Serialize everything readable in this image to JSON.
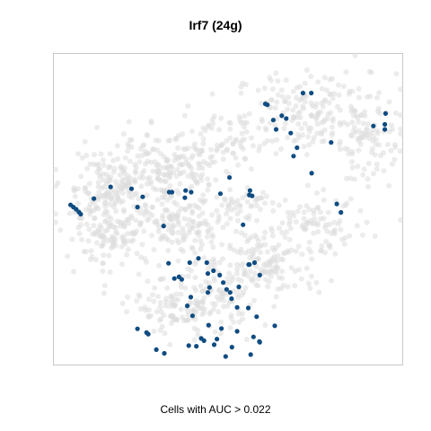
{
  "chart_data": {
    "type": "scatter",
    "title": "Irf7 (24g)",
    "caption": "Cells with AUC > 0.022",
    "xlabel": "",
    "ylabel": "",
    "xlim": [
      0,
      100
    ],
    "ylim": [
      0,
      100
    ],
    "grid": false,
    "colors": {
      "background_cells": "#dcdcdc",
      "highlighted_cells": "#0f4c81"
    },
    "background_regions": [
      {
        "cx": 75,
        "cy": 81,
        "rx": 23,
        "ry": 13,
        "n": 190
      },
      {
        "cx": 90,
        "cy": 72,
        "rx": 8,
        "ry": 15,
        "n": 70
      },
      {
        "cx": 47,
        "cy": 71,
        "rx": 14,
        "ry": 9,
        "n": 80
      },
      {
        "cx": 15,
        "cy": 57,
        "rx": 13,
        "ry": 13,
        "n": 150
      },
      {
        "cx": 32,
        "cy": 61,
        "rx": 14,
        "ry": 12,
        "n": 170
      },
      {
        "cx": 17,
        "cy": 42,
        "rx": 14,
        "ry": 10,
        "n": 130
      },
      {
        "cx": 38,
        "cy": 45,
        "rx": 14,
        "ry": 9,
        "n": 110
      },
      {
        "cx": 60,
        "cy": 33,
        "rx": 18,
        "ry": 12,
        "n": 160
      },
      {
        "cx": 40,
        "cy": 19,
        "rx": 17,
        "ry": 9,
        "n": 170
      },
      {
        "cx": 75,
        "cy": 45,
        "rx": 15,
        "ry": 9,
        "n": 90
      },
      {
        "cx": 55,
        "cy": 52,
        "rx": 10,
        "ry": 5,
        "n": 40
      }
    ],
    "highlighted": {
      "x": [
        4.8,
        5.6,
        6.4,
        7.2,
        7.7,
        11.5,
        16.3,
        22.3,
        25.5,
        33.1,
        33.9,
        37.8,
        39.4,
        24.0,
        31.5,
        31.5,
        37.6,
        47.8,
        56.1,
        56.9,
        50.4,
        56.3,
        66.7,
        65.4,
        63.0,
        61.3,
        60.7,
        63.8,
        68.0,
        68.8,
        69.8,
        71.5,
        73.9,
        91.7,
        95.0,
        95.0,
        95.2,
        74.0,
        79.6,
        81.2,
        82.4,
        54.3,
        55.9,
        57.6,
        39.0,
        43.9,
        36.7,
        27.1,
        32.9,
        34.6,
        38.3,
        39.8,
        44.7,
        44.2,
        45.8,
        47.6,
        48.6,
        44.2,
        50.6,
        53.1,
        56.1,
        59.1,
        52.6,
        39.3,
        35.9,
        41.5,
        49.6,
        51.0,
        55.8,
        58.2,
        44.4,
        48.1,
        43.1,
        40.9,
        24.0,
        26.6,
        29.4,
        31.7,
        38.7,
        42.3,
        46.8,
        52.6,
        57.3,
        63.4,
        46.0,
        51.1,
        59.0,
        49.3,
        56.5,
        59.1
      ],
      "y": [
        51.4,
        50.7,
        50.0,
        49.1,
        48.4,
        53.4,
        57.2,
        56.6,
        54.0,
        55.5,
        55.5,
        56.0,
        55.5,
        50.7,
        44.6,
        44.6,
        53.7,
        55.0,
        54.6,
        54.3,
        60.2,
        56.0,
        79.2,
        80.1,
        78.7,
        83.6,
        83.9,
        75.7,
        74.5,
        67.1,
        69.8,
        87.4,
        87.4,
        76.8,
        77.3,
        75.7,
        80.8,
        61.6,
        71.5,
        51.7,
        49.0,
        45.0,
        32.2,
        32.8,
        32.8,
        32.8,
        27.4,
        9.8,
        32.6,
        27.7,
        18.9,
        15.7,
        24.8,
        29.3,
        30.2,
        28.8,
        26.4,
        23.2,
        23.2,
        25.0,
        32.2,
        28.8,
        18.4,
        21.7,
        28.2,
        34.2,
        24.2,
        21.2,
        18.2,
        15.4,
        12.7,
        11.6,
        7.7,
        5.9,
        11.5,
        10.3,
        4.8,
        3.6,
        6.1,
        8.4,
        8.2,
        10.7,
        8.9,
        12.5,
        6.4,
        5.6,
        7.4,
        2.6,
        3.2,
        7.2
      ]
    }
  }
}
